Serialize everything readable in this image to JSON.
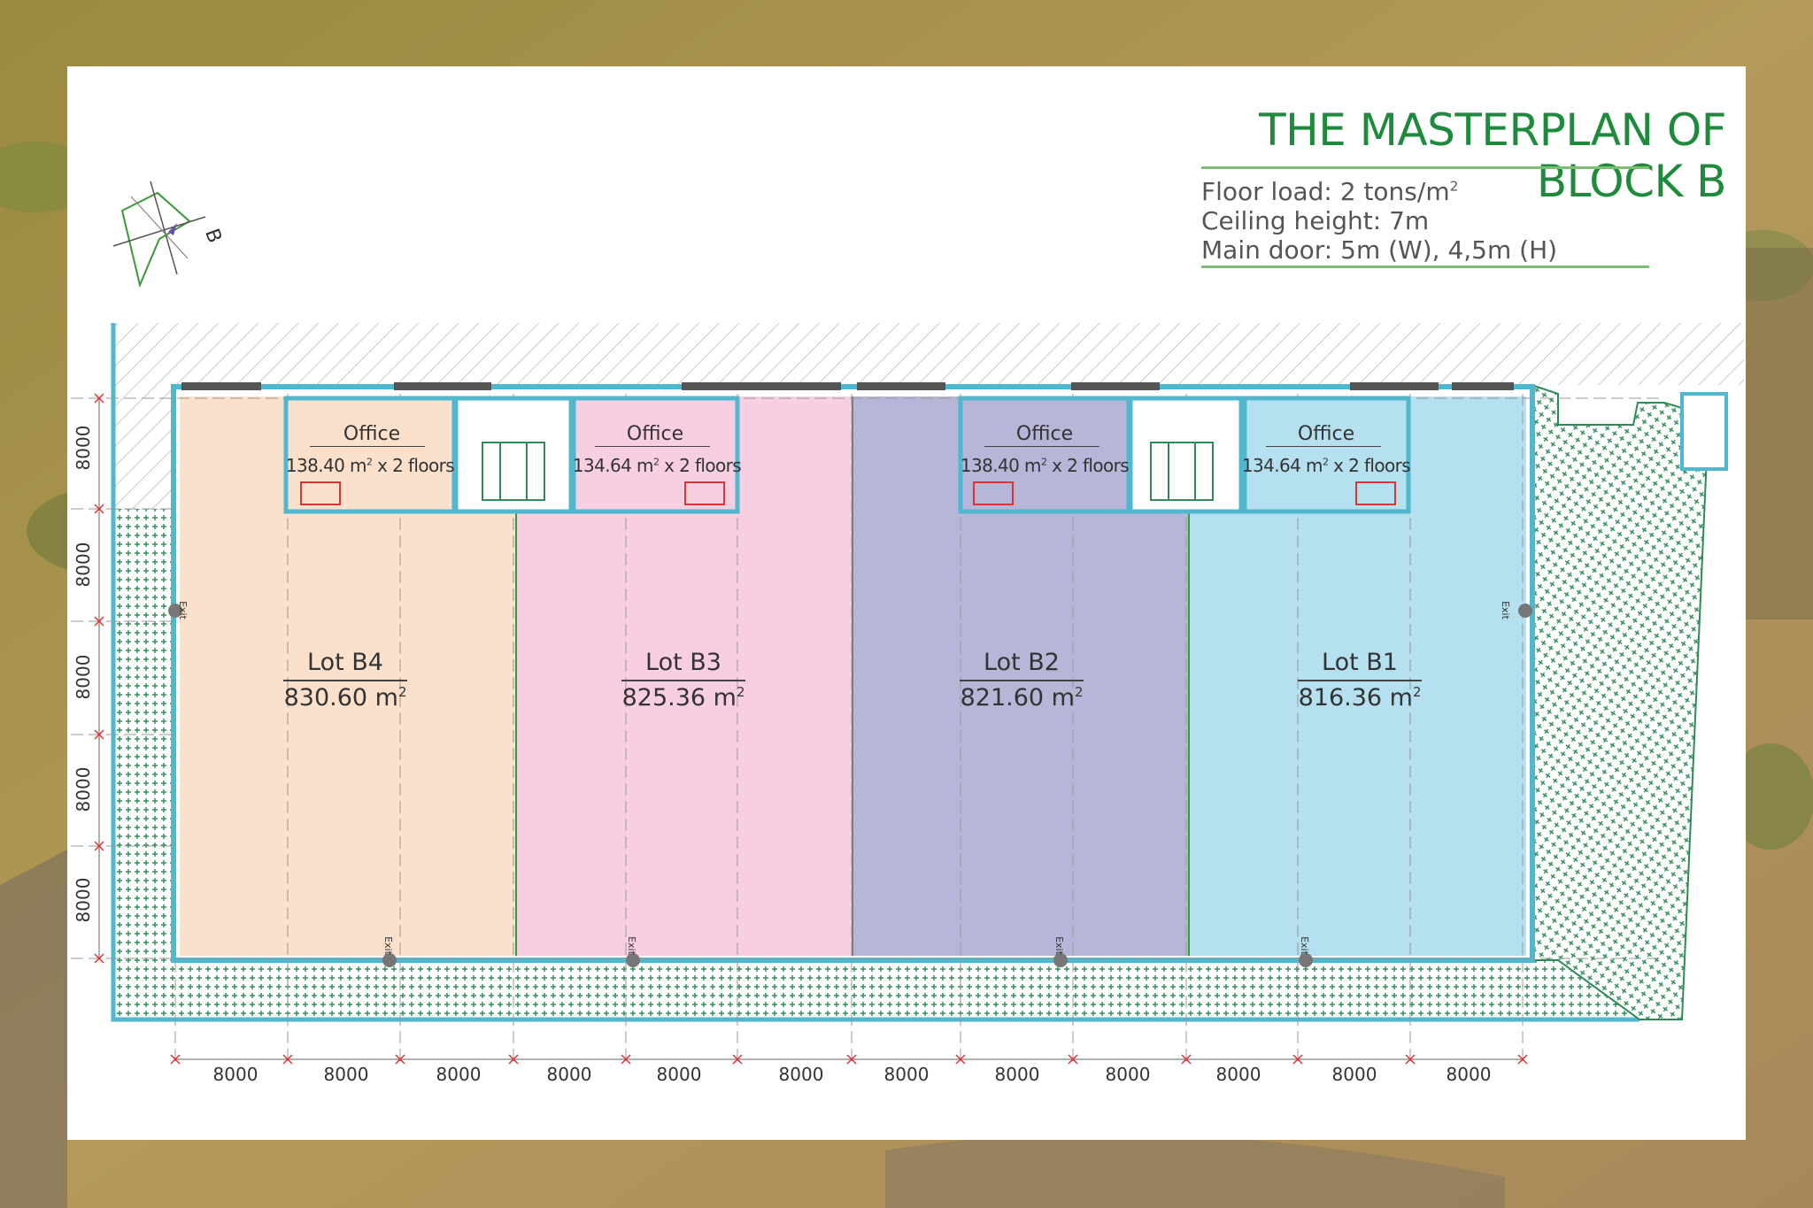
{
  "title": "THE MASTERPLAN OF BLOCK B",
  "specs": {
    "floor_load": "Floor load: 2 tons/m",
    "floor_load_sup": "2",
    "ceiling_height": "Ceiling height: 7m",
    "main_door": "Main door: 5m (W), 4,5m (H)"
  },
  "compass_letter": "B",
  "lots": [
    {
      "name": "Lot B4",
      "area": "830.60 m",
      "sup": "2",
      "color": "#fbe0cc"
    },
    {
      "name": "Lot B3",
      "area": "825.36 m",
      "sup": "2",
      "color": "#f7cfe0"
    },
    {
      "name": "Lot B2",
      "area": "821.60 m",
      "sup": "2",
      "color": "#b7b6d8"
    },
    {
      "name": "Lot B1",
      "area": "816.36 m",
      "sup": "2",
      "color": "#b4e0ef"
    }
  ],
  "offices": [
    {
      "name": "Office",
      "area": "138.40 m",
      "sup": "2",
      "suffix": " x 2 floors"
    },
    {
      "name": "Office",
      "area": "134.64 m",
      "sup": "2",
      "suffix": " x 2 floors"
    },
    {
      "name": "Office",
      "area": "138.40 m",
      "sup": "2",
      "suffix": " x 2 floors"
    },
    {
      "name": "Office",
      "area": "134.64 m",
      "sup": "2",
      "suffix": " x 2 floors"
    }
  ],
  "dims_horizontal": [
    "8000",
    "8000",
    "8000",
    "8000",
    "8000",
    "8000",
    "8000",
    "8000",
    "8000",
    "8000",
    "8000",
    "8000"
  ],
  "dims_vertical": [
    "8000",
    "8000",
    "8000",
    "8000",
    "8000"
  ],
  "exit_label": "Exit",
  "colors": {
    "wall": "#4fb8cf",
    "grass": "#2e8b57",
    "title": "#1e8a3c",
    "rule": "#7dbf72"
  }
}
